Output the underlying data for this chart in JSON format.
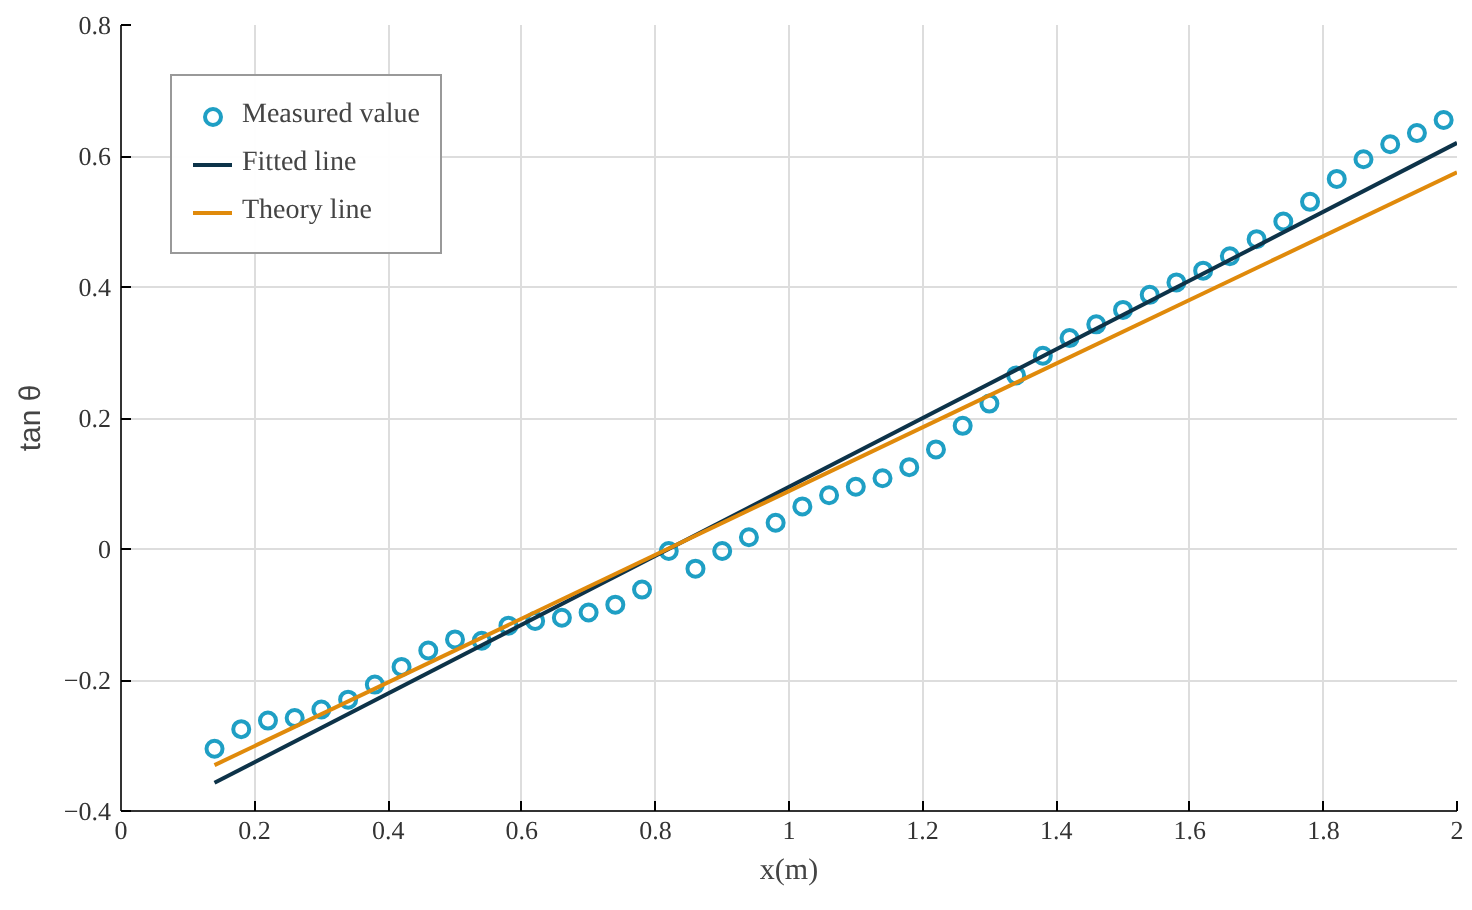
{
  "chart_data": {
    "type": "line",
    "xlabel": "x(m)",
    "ylabel": "tan θ",
    "xlim": [
      0,
      2
    ],
    "ylim": [
      -0.4,
      0.8
    ],
    "xticks": [
      0,
      0.2,
      0.4,
      0.6,
      0.8,
      1,
      1.2,
      1.4,
      1.6,
      1.8,
      2
    ],
    "yticks": [
      {
        "value": -0.4,
        "label": "−0.4"
      },
      {
        "value": -0.2,
        "label": "−0.2"
      },
      0,
      0.2,
      0.4,
      0.6,
      0.8
    ],
    "grid": true,
    "legend": "top left",
    "series": [
      {
        "name": "Measured value",
        "type": "scatter",
        "marker": "circle",
        "color": "#1f9fc4",
        "x": [
          0.14,
          0.18,
          0.22,
          0.26,
          0.3,
          0.34,
          0.38,
          0.42,
          0.46,
          0.5,
          0.54,
          0.58,
          0.62,
          0.66,
          0.7,
          0.74,
          0.78,
          0.82,
          0.86,
          0.9,
          0.94,
          0.98,
          1.02,
          1.06,
          1.1,
          1.14,
          1.18,
          1.22,
          1.26,
          1.3,
          1.34,
          1.38,
          1.42,
          1.46,
          1.5,
          1.54,
          1.58,
          1.62,
          1.66,
          1.7,
          1.74,
          1.78,
          1.82,
          1.86,
          1.9,
          1.94,
          1.98
        ],
        "values": [
          -0.305,
          -0.275,
          -0.262,
          -0.258,
          -0.245,
          -0.23,
          -0.207,
          -0.18,
          -0.155,
          -0.138,
          -0.14,
          -0.117,
          -0.11,
          -0.105,
          -0.097,
          -0.085,
          -0.062,
          -0.003,
          -0.03,
          -0.003,
          0.018,
          0.04,
          0.065,
          0.082,
          0.095,
          0.108,
          0.125,
          0.152,
          0.188,
          0.222,
          0.265,
          0.295,
          0.322,
          0.343,
          0.365,
          0.388,
          0.407,
          0.425,
          0.447,
          0.473,
          0.5,
          0.53,
          0.565,
          0.595,
          0.618,
          0.635,
          0.655
        ]
      },
      {
        "name": "Fitted line",
        "line_style": "solid",
        "color": "#0d3349",
        "x": [
          0.14,
          2.0
        ],
        "values": [
          -0.357,
          0.62
        ]
      },
      {
        "name": "Theory line",
        "line_style": "solid",
        "color": "#e08a0b",
        "x": [
          0.14,
          2.0
        ],
        "values": [
          -0.33,
          0.575
        ]
      }
    ]
  }
}
